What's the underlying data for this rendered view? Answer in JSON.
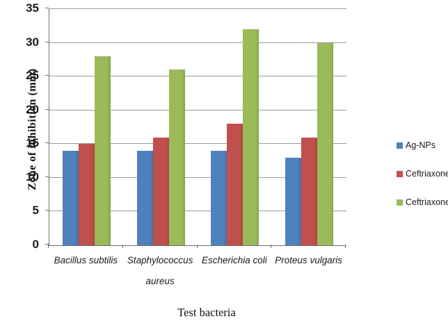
{
  "chart_data": {
    "type": "bar",
    "title": "",
    "xlabel": "Test bacteria",
    "ylabel": "Zone of inhibition (mm)",
    "categories": [
      "Bacillus subtilis",
      "Staphylococcus aureus",
      "Escherichia coli",
      "Proteus vulgaris"
    ],
    "series": [
      {
        "name": "Ag-NPs",
        "color": "#4f81bd",
        "values": [
          14,
          14,
          14,
          13
        ]
      },
      {
        "name": "Ceftriaxone Ab",
        "color": "#c0504d",
        "values": [
          15,
          16,
          18,
          16
        ]
      },
      {
        "name": "Ceftriaxone Ab + NPs",
        "color": "#9bbb59",
        "values": [
          28,
          26,
          32,
          30
        ]
      }
    ],
    "ylim": [
      0,
      35
    ],
    "ytick_step": 5,
    "yticks": [
      "0",
      "5",
      "10",
      "15",
      "20",
      "25",
      "30",
      "35"
    ],
    "grid": true,
    "legend_position": "right",
    "colors": {
      "axis": "#6e6e6e",
      "gridline": "#9a9a9a",
      "text": "#1a1a1a"
    }
  }
}
